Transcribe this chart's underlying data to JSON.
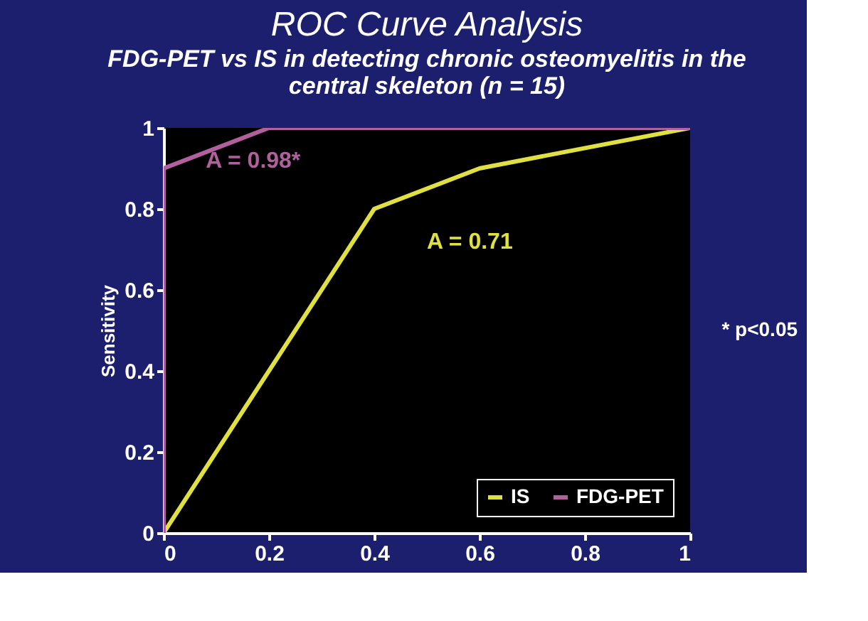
{
  "chart_data": {
    "type": "line",
    "title": "ROC Curve Analysis",
    "subtitle": "FDG-PET vs IS in detecting chronic osteomyelitis in the central skeleton (n = 15)",
    "ylabel": "Sensitivity",
    "series": [
      {
        "name": "IS",
        "color": "#e0e040",
        "x": [
          0,
          0.4,
          0.6,
          1
        ],
        "values": [
          0,
          0.8,
          0.9,
          1
        ]
      },
      {
        "name": "FDG-PET",
        "color": "#b0609c",
        "x": [
          0,
          0,
          0.2,
          1
        ],
        "values": [
          0,
          0.9,
          1,
          1
        ]
      }
    ],
    "xlim": [
      0,
      1
    ],
    "ylim": [
      0,
      1
    ],
    "xticks": [
      0,
      0.2,
      0.4,
      0.6,
      0.8,
      1
    ],
    "yticks": [
      0,
      0.2,
      0.4,
      0.6,
      0.8,
      1
    ],
    "annotations": [
      "A = 0.98*",
      "A = 0.71",
      "* p<0.05"
    ],
    "grid": false,
    "legend": "bottom right",
    "marker": "none",
    "line_style": "solid"
  }
}
